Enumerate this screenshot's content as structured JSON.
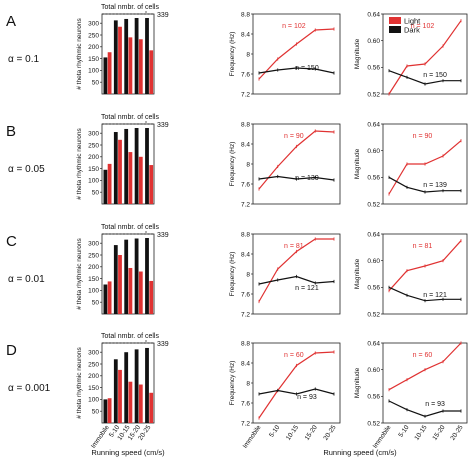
{
  "figure": {
    "x_axis_label": "Running speed (cm/s)",
    "speed_categories": [
      "Immobile",
      "5-10",
      "10-15",
      "15-20",
      "20-25"
    ],
    "legend": [
      {
        "label": "Light",
        "color": "#e03232"
      },
      {
        "label": "Dark",
        "color": "#111111"
      }
    ],
    "colors": {
      "light": "#e03232",
      "dark": "#111111"
    },
    "rows": [
      {
        "letter": "A",
        "alpha_label": "α = 0.1"
      },
      {
        "letter": "B",
        "alpha_label": "α = 0.05"
      },
      {
        "letter": "C",
        "alpha_label": "α = 0.01"
      },
      {
        "letter": "D",
        "alpha_label": "α = 0.001"
      }
    ]
  },
  "chart_data": [
    {
      "type": "bar",
      "panel": "A-count",
      "title": "",
      "xlabel": "Running speed (cm/s)",
      "ylabel": "# theta rhythmic neurons",
      "categories": [
        "Immobile",
        "5-10",
        "10-15",
        "15-20",
        "20-25"
      ],
      "series": [
        {
          "name": "Dark",
          "values": [
            155,
            312,
            318,
            322,
            322
          ]
        },
        {
          "name": "Light",
          "values": [
            177,
            285,
            240,
            232,
            185
          ]
        }
      ],
      "ylim": [
        0,
        339
      ],
      "yticks": [
        50,
        100,
        150,
        200,
        250,
        300
      ],
      "reference_line": {
        "value": 339,
        "label": "Total nmbr. of cells",
        "value_label": "339"
      }
    },
    {
      "type": "line",
      "panel": "A-frequency",
      "title": "",
      "xlabel": "Running speed (cm/s)",
      "ylabel": "Frequency (Hz)",
      "categories": [
        "Immobile",
        "5-10",
        "10-15",
        "15-20",
        "20-25"
      ],
      "series": [
        {
          "name": "Light",
          "values": [
            7.5,
            7.9,
            8.2,
            8.48,
            8.5
          ]
        },
        {
          "name": "Dark",
          "values": [
            7.62,
            7.68,
            7.72,
            7.7,
            7.62
          ]
        }
      ],
      "ylim": [
        7.2,
        8.8
      ],
      "yticks": [
        7.2,
        7.6,
        8,
        8.4,
        8.8
      ],
      "ytick_labels": [
        "7.2",
        "7.6",
        "8",
        "8.4",
        "8.8"
      ],
      "annotations": [
        {
          "text": "n = 102",
          "series": "Light"
        },
        {
          "text": "n = 150",
          "series": "Dark"
        }
      ]
    },
    {
      "type": "line",
      "panel": "A-magnitude",
      "title": "",
      "xlabel": "Running speed (cm/s)",
      "ylabel": "Magnitude",
      "categories": [
        "Immobile",
        "5-10",
        "10-15",
        "15-20",
        "20-25"
      ],
      "series": [
        {
          "name": "Light",
          "values": [
            0.52,
            0.562,
            0.565,
            0.592,
            0.63
          ]
        },
        {
          "name": "Dark",
          "values": [
            0.555,
            0.545,
            0.535,
            0.54,
            0.54
          ]
        }
      ],
      "ylim": [
        0.52,
        0.64
      ],
      "yticks": [
        0.52,
        0.56,
        0.6,
        0.64
      ],
      "ytick_labels": [
        "0.52",
        "0.56",
        "0.60",
        "0.64"
      ],
      "annotations": [
        {
          "text": "n = 102",
          "series": "Light"
        },
        {
          "text": "n = 150",
          "series": "Dark"
        }
      ]
    },
    {
      "type": "bar",
      "panel": "B-count",
      "title": "",
      "xlabel": "Running speed (cm/s)",
      "ylabel": "# theta rhythmic neurons",
      "categories": [
        "Immobile",
        "5-10",
        "10-15",
        "15-20",
        "20-25"
      ],
      "series": [
        {
          "name": "Dark",
          "values": [
            145,
            305,
            318,
            322,
            322
          ]
        },
        {
          "name": "Light",
          "values": [
            170,
            272,
            220,
            200,
            165
          ]
        }
      ],
      "ylim": [
        0,
        339
      ],
      "yticks": [
        50,
        100,
        150,
        200,
        250,
        300
      ],
      "reference_line": {
        "value": 339,
        "label": "Total nmbr. of cells",
        "value_label": "339"
      }
    },
    {
      "type": "line",
      "panel": "B-frequency",
      "title": "",
      "xlabel": "Running speed (cm/s)",
      "ylabel": "Frequency (Hz)",
      "categories": [
        "Immobile",
        "5-10",
        "10-15",
        "15-20",
        "20-25"
      ],
      "series": [
        {
          "name": "Light",
          "values": [
            7.5,
            7.95,
            8.35,
            8.66,
            8.64
          ]
        },
        {
          "name": "Dark",
          "values": [
            7.7,
            7.75,
            7.7,
            7.73,
            7.68
          ]
        }
      ],
      "ylim": [
        7.2,
        8.8
      ],
      "yticks": [
        7.2,
        7.6,
        8,
        8.4,
        8.8
      ],
      "ytick_labels": [
        "7.2",
        "7.6",
        "8",
        "8.4",
        "8.8"
      ],
      "annotations": [
        {
          "text": "n = 90",
          "series": "Light"
        },
        {
          "text": "n = 139",
          "series": "Dark"
        }
      ]
    },
    {
      "type": "line",
      "panel": "B-magnitude",
      "title": "",
      "xlabel": "Running speed (cm/s)",
      "ylabel": "Magnitude",
      "categories": [
        "Immobile",
        "5-10",
        "10-15",
        "15-20",
        "20-25"
      ],
      "series": [
        {
          "name": "Light",
          "values": [
            0.535,
            0.58,
            0.58,
            0.592,
            0.615
          ]
        },
        {
          "name": "Dark",
          "values": [
            0.56,
            0.545,
            0.538,
            0.54,
            0.54
          ]
        }
      ],
      "ylim": [
        0.52,
        0.64
      ],
      "yticks": [
        0.52,
        0.56,
        0.6,
        0.64
      ],
      "ytick_labels": [
        "0.52",
        "0.56",
        "0.60",
        "0.64"
      ],
      "annotations": [
        {
          "text": "n = 90",
          "series": "Light"
        },
        {
          "text": "n = 139",
          "series": "Dark"
        }
      ]
    },
    {
      "type": "bar",
      "panel": "C-count",
      "title": "",
      "xlabel": "Running speed (cm/s)",
      "ylabel": "# theta rhythmic neurons",
      "categories": [
        "Immobile",
        "5-10",
        "10-15",
        "15-20",
        "20-25"
      ],
      "series": [
        {
          "name": "Dark",
          "values": [
            125,
            292,
            315,
            320,
            322
          ]
        },
        {
          "name": "Light",
          "values": [
            138,
            250,
            195,
            180,
            140
          ]
        }
      ],
      "ylim": [
        0,
        339
      ],
      "yticks": [
        50,
        100,
        150,
        200,
        250,
        300
      ],
      "reference_line": {
        "value": 339,
        "label": "Total nmbr. of cells",
        "value_label": "339"
      }
    },
    {
      "type": "line",
      "panel": "C-frequency",
      "title": "",
      "xlabel": "Running speed (cm/s)",
      "ylabel": "Frequency (Hz)",
      "categories": [
        "Immobile",
        "5-10",
        "10-15",
        "15-20",
        "20-25"
      ],
      "series": [
        {
          "name": "Light",
          "values": [
            7.45,
            8.1,
            8.45,
            8.7,
            8.7
          ]
        },
        {
          "name": "Dark",
          "values": [
            7.8,
            7.88,
            7.95,
            7.82,
            7.85
          ]
        }
      ],
      "ylim": [
        7.2,
        8.8
      ],
      "yticks": [
        7.2,
        7.6,
        8,
        8.4,
        8.8
      ],
      "ytick_labels": [
        "7.2",
        "7.6",
        "8",
        "8.4",
        "8.8"
      ],
      "annotations": [
        {
          "text": "n = 81",
          "series": "Light"
        },
        {
          "text": "n = 121",
          "series": "Dark"
        }
      ]
    },
    {
      "type": "line",
      "panel": "C-magnitude",
      "title": "",
      "xlabel": "Running speed (cm/s)",
      "ylabel": "Magnitude",
      "categories": [
        "Immobile",
        "5-10",
        "10-15",
        "15-20",
        "20-25"
      ],
      "series": [
        {
          "name": "Light",
          "values": [
            0.555,
            0.585,
            0.592,
            0.6,
            0.63
          ]
        },
        {
          "name": "Dark",
          "values": [
            0.56,
            0.548,
            0.54,
            0.542,
            0.542
          ]
        }
      ],
      "ylim": [
        0.52,
        0.64
      ],
      "yticks": [
        0.52,
        0.56,
        0.6,
        0.64
      ],
      "ytick_labels": [
        "0.52",
        "0.56",
        "0.60",
        "0.64"
      ],
      "annotations": [
        {
          "text": "n = 81",
          "series": "Light"
        },
        {
          "text": "n = 121",
          "series": "Dark"
        }
      ]
    },
    {
      "type": "bar",
      "panel": "D-count",
      "title": "",
      "xlabel": "Running speed (cm/s)",
      "ylabel": "# theta rhythmic neurons",
      "categories": [
        "Immobile",
        "5-10",
        "10-15",
        "15-20",
        "20-25"
      ],
      "series": [
        {
          "name": "Dark",
          "values": [
            100,
            270,
            300,
            312,
            318
          ]
        },
        {
          "name": "Light",
          "values": [
            105,
            225,
            175,
            163,
            128
          ]
        }
      ],
      "ylim": [
        0,
        339
      ],
      "yticks": [
        50,
        100,
        150,
        200,
        250,
        300
      ],
      "reference_line": {
        "value": 339,
        "label": "Total nmbr. of cells",
        "value_label": "339"
      }
    },
    {
      "type": "line",
      "panel": "D-frequency",
      "title": "",
      "xlabel": "Running speed (cm/s)",
      "ylabel": "Frequency (Hz)",
      "categories": [
        "Immobile",
        "5-10",
        "10-15",
        "15-20",
        "20-25"
      ],
      "series": [
        {
          "name": "Light",
          "values": [
            7.3,
            7.85,
            8.35,
            8.6,
            8.62
          ]
        },
        {
          "name": "Dark",
          "values": [
            7.78,
            7.85,
            7.78,
            7.88,
            7.78
          ]
        }
      ],
      "ylim": [
        7.2,
        8.8
      ],
      "yticks": [
        7.2,
        7.6,
        8,
        8.4,
        8.8
      ],
      "ytick_labels": [
        "7.2",
        "7.6",
        "8",
        "8.4",
        "8.8"
      ],
      "annotations": [
        {
          "text": "n = 60",
          "series": "Light"
        },
        {
          "text": "n = 93",
          "series": "Dark"
        }
      ]
    },
    {
      "type": "line",
      "panel": "D-magnitude",
      "title": "",
      "xlabel": "Running speed (cm/s)",
      "ylabel": "Magnitude",
      "categories": [
        "Immobile",
        "5-10",
        "10-15",
        "15-20",
        "20-25"
      ],
      "series": [
        {
          "name": "Light",
          "values": [
            0.57,
            0.585,
            0.6,
            0.612,
            0.64
          ]
        },
        {
          "name": "Dark",
          "values": [
            0.553,
            0.54,
            0.53,
            0.538,
            0.538
          ]
        }
      ],
      "ylim": [
        0.52,
        0.64
      ],
      "yticks": [
        0.52,
        0.56,
        0.6,
        0.64
      ],
      "ytick_labels": [
        "0.52",
        "0.56",
        "0.60",
        "0.64"
      ],
      "annotations": [
        {
          "text": "n = 60",
          "series": "Light"
        },
        {
          "text": "n = 93",
          "series": "Dark"
        }
      ]
    }
  ]
}
